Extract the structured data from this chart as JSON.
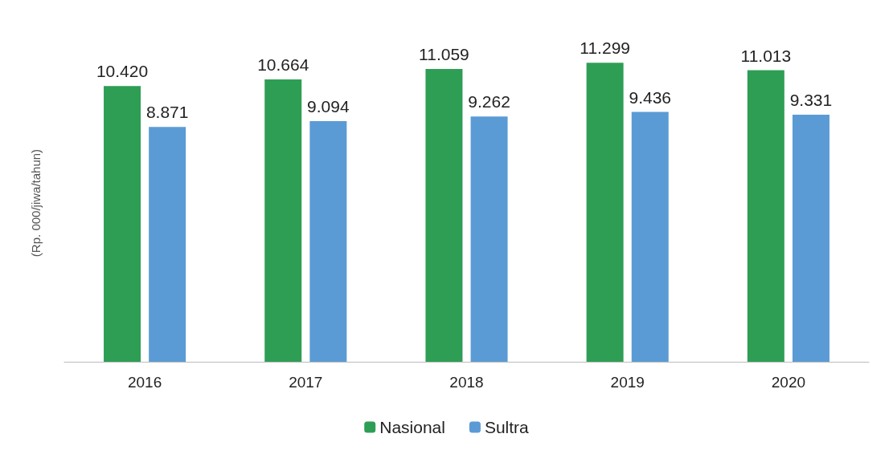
{
  "chart_data": {
    "type": "bar",
    "ylabel": "(Rp. 000/jiwa/tahun)",
    "categories": [
      "2016",
      "2017",
      "2018",
      "2019",
      "2020"
    ],
    "series": [
      {
        "name": "Nasional",
        "color": "#2e9e55",
        "values": [
          10420,
          10664,
          11059,
          11299,
          11013
        ],
        "value_labels": [
          "10.420",
          "10.664",
          "11.059",
          "11.299",
          "11.013"
        ]
      },
      {
        "name": "Sultra",
        "color": "#5b9bd5",
        "values": [
          8871,
          9094,
          9262,
          9436,
          9331
        ],
        "value_labels": [
          "8.871",
          "9.094",
          "9.262",
          "9.436",
          "9.331"
        ]
      }
    ],
    "legend": "bottom"
  }
}
